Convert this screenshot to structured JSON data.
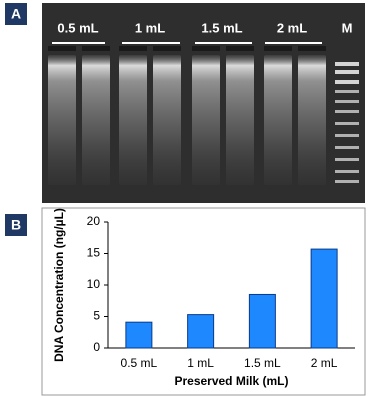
{
  "figure": {
    "panel_labels": [
      "A",
      "B"
    ],
    "gel_lanes": [
      "0.5 mL",
      "1 mL",
      "1.5 mL",
      "2 mL",
      "M"
    ]
  },
  "chart_data": {
    "type": "bar",
    "categories": [
      "0.5 mL",
      "1 mL",
      "1.5 mL",
      "2 mL"
    ],
    "values": [
      4.1,
      5.3,
      8.5,
      15.7
    ],
    "color": "#1e88ff",
    "x_label": "Preserved Milk (mL)",
    "y_label": "DNA Concentration (ng/µL)",
    "ylim": [
      0,
      20
    ],
    "yticks": [
      0,
      5,
      10,
      15,
      20
    ]
  }
}
